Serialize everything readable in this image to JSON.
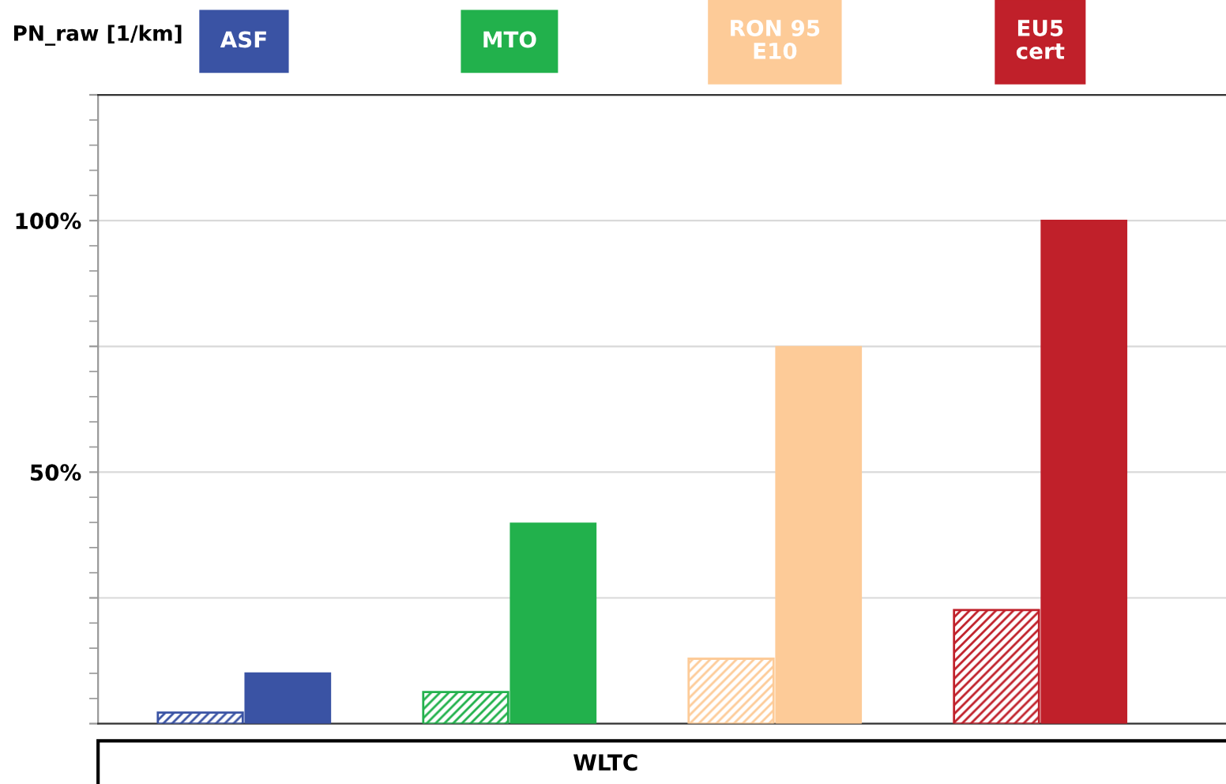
{
  "chart_data": {
    "type": "bar",
    "ylabel": "PN_raw [1/km]",
    "xlabel": "WLTC",
    "categories": [
      "ASF",
      "MTO",
      "RON 95\nE10",
      "EU5\ncert"
    ],
    "series": [
      {
        "colors": [
          "#3a53a4",
          "#22b14c",
          "#fdcb98",
          "#c0202a"
        ],
        "values": [
          2.2,
          6.3,
          12.9,
          22.6
        ]
      },
      {
        "colors": [
          "#3a53a4",
          "#22b14c",
          "#fdcb98",
          "#c0202a"
        ],
        "values": [
          10,
          39.8,
          74.9,
          100
        ]
      }
    ],
    "ylim": [
      0,
      125
    ],
    "yticks": [
      {
        "value": 0,
        "label": null
      },
      {
        "value": 25,
        "label": null
      },
      {
        "value": 50,
        "label": "50%"
      },
      {
        "value": 75,
        "label": null
      },
      {
        "value": 100,
        "label": "100%"
      },
      {
        "value": 125,
        "label": null
      }
    ],
    "grid": "y",
    "legend": false
  }
}
